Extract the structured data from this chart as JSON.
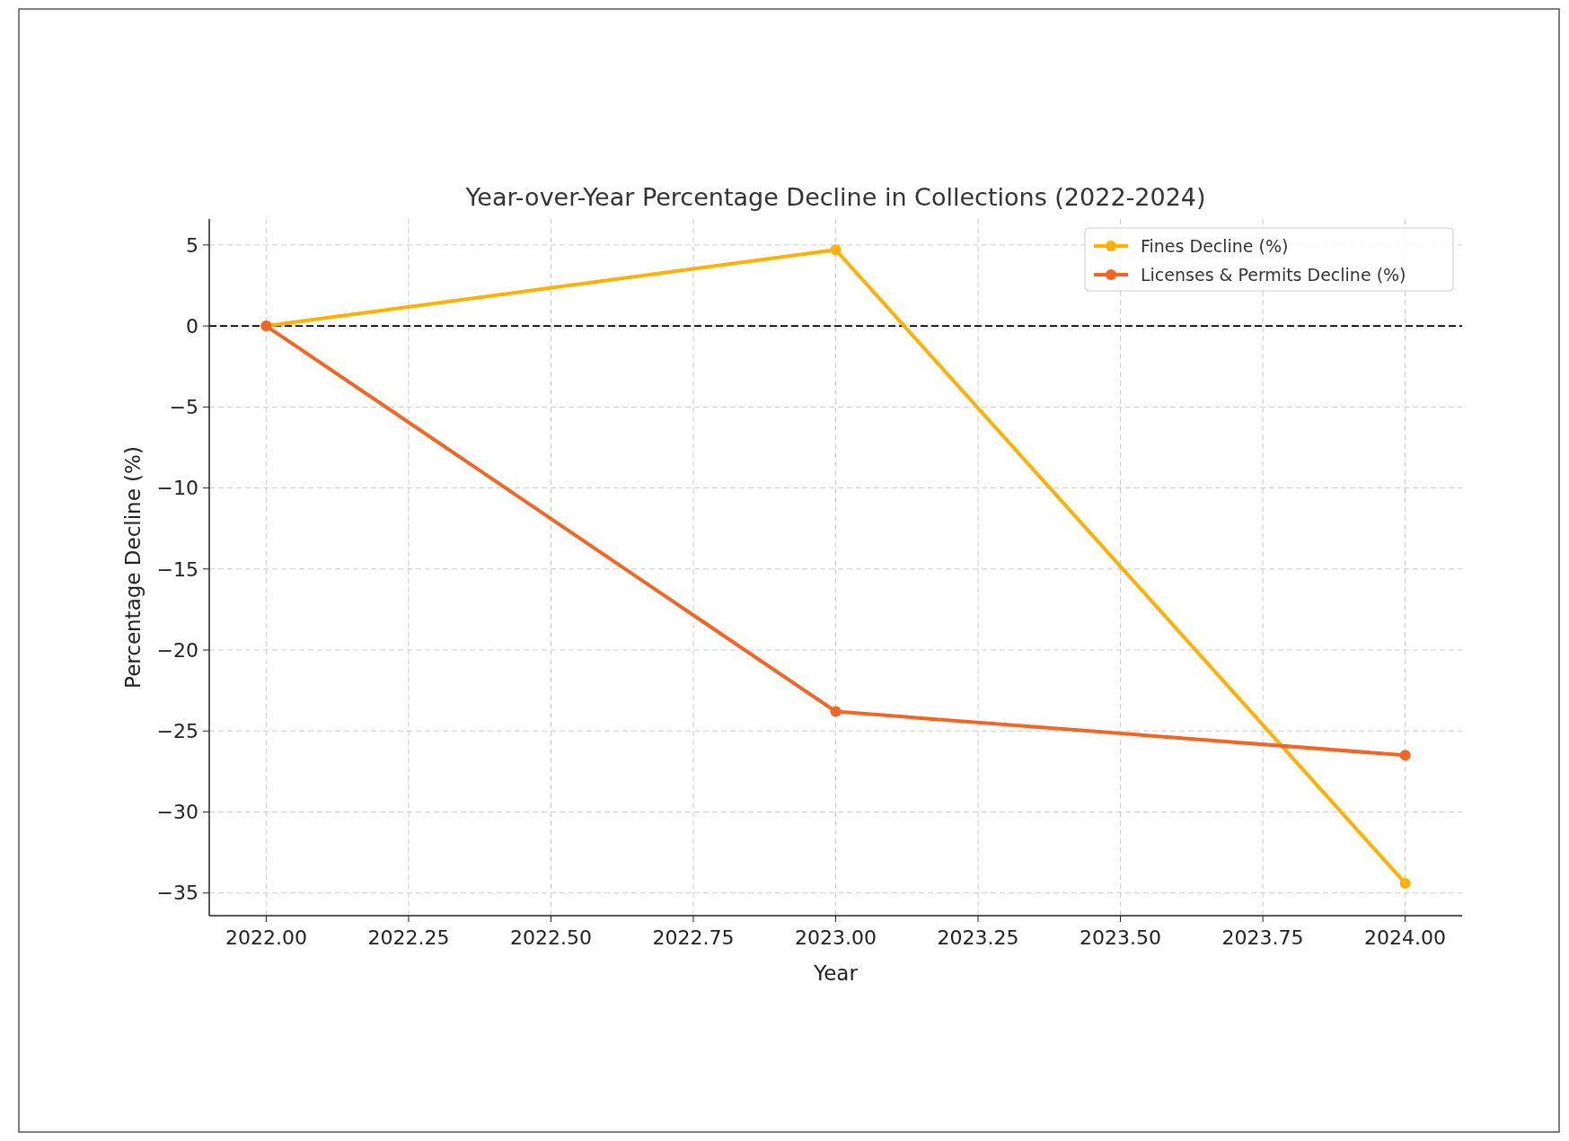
{
  "chart_data": {
    "type": "line",
    "title": "Year-over-Year Percentage Decline in Collections (2022-2024)",
    "xlabel": "Year",
    "ylabel": "Percentage Decline (%)",
    "x": [
      2022,
      2023,
      2024
    ],
    "series": [
      {
        "name": "Fines Decline (%)",
        "color": "#ffb000",
        "values": [
          0,
          4.7,
          -34.4
        ]
      },
      {
        "name": "Licenses & Permits Decline (%)",
        "color": "#f26522",
        "values": [
          0,
          -23.8,
          -26.5
        ]
      }
    ],
    "xlim": [
      2021.9,
      2024.1
    ],
    "xticks": [
      {
        "value": 2022,
        "label": "2022.00"
      },
      {
        "value": 2022.25,
        "label": "2022.25"
      },
      {
        "value": 2022.5,
        "label": "2022.50"
      },
      {
        "value": 2022.75,
        "label": "2022.75"
      },
      {
        "value": 2023,
        "label": "2023.00"
      },
      {
        "value": 2023.25,
        "label": "2023.25"
      },
      {
        "value": 2023.5,
        "label": "2023.50"
      },
      {
        "value": 2023.75,
        "label": "2023.75"
      },
      {
        "value": 2024,
        "label": "2024.00"
      }
    ],
    "ylim": [
      -36.4,
      6.6
    ],
    "yticks": [
      {
        "value": 5,
        "label": "5"
      },
      {
        "value": 0,
        "label": "0"
      },
      {
        "value": -5,
        "label": "−5"
      },
      {
        "value": -10,
        "label": "−10"
      },
      {
        "value": -15,
        "label": "−15"
      },
      {
        "value": -20,
        "label": "−20"
      },
      {
        "value": -25,
        "label": "−25"
      },
      {
        "value": -30,
        "label": "−30"
      },
      {
        "value": -35,
        "label": "−35"
      }
    ],
    "ref_lines": [
      {
        "axis": "y",
        "value": 0,
        "color": "#000000",
        "line_style": "dashed"
      }
    ],
    "grid": true,
    "legend": "top right",
    "marker": "circle",
    "line_style": "solid"
  }
}
